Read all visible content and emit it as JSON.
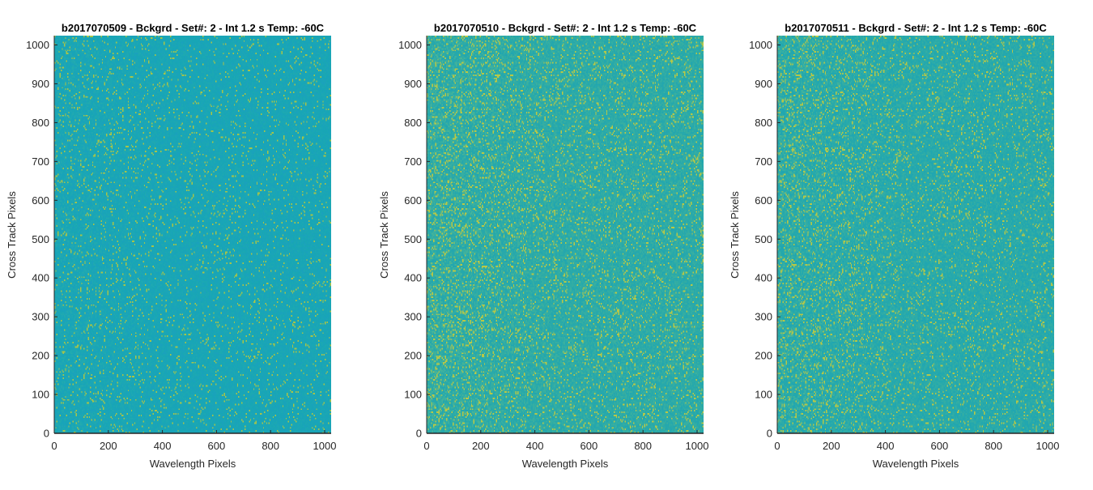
{
  "chart_data": [
    {
      "type": "heatmap",
      "title": "b2017070509 - Bckgrd - Set#: 2 - Int 1.2 s Temp: -60C",
      "xlabel": "Wavelength Pixels",
      "ylabel": "Cross Track Pixels",
      "xlim": [
        0,
        1024
      ],
      "ylim": [
        0,
        1024
      ],
      "x_ticks": [
        0,
        200,
        400,
        600,
        800,
        1000
      ],
      "y_ticks": [
        0,
        100,
        200,
        300,
        400,
        500,
        600,
        700,
        800,
        900,
        1000
      ],
      "colors": {
        "base": "#17a6b5",
        "light": "#4db79a",
        "dark": "#1d9ec2",
        "speckle": "#a8c447"
      },
      "texture": {
        "base_mix": 0.12,
        "left_gradient": 0.15,
        "speckle_rate": 0.05
      }
    },
    {
      "type": "heatmap",
      "title": "b2017070510 - Bckgrd - Set#: 2 - Int 1.2 s Temp: -60C",
      "xlabel": "Wavelength Pixels",
      "ylabel": "Cross Track Pixels",
      "xlim": [
        0,
        1024
      ],
      "ylim": [
        0,
        1024
      ],
      "x_ticks": [
        0,
        200,
        400,
        600,
        800,
        1000
      ],
      "y_ticks": [
        0,
        100,
        200,
        300,
        400,
        500,
        600,
        700,
        800,
        900,
        1000
      ],
      "colors": {
        "base": "#2aaaa8",
        "light": "#5ebc8c",
        "dark": "#1aa2b8",
        "speckle": "#b9c845"
      },
      "texture": {
        "base_mix": 0.35,
        "left_gradient": 0.35,
        "speckle_rate": 0.09
      }
    },
    {
      "type": "heatmap",
      "title": "b2017070511 - Bckgrd - Set#: 2 - Int 1.2 s Temp: -60C",
      "xlabel": "Wavelength Pixels",
      "ylabel": "Cross Track Pixels",
      "xlim": [
        0,
        1024
      ],
      "ylim": [
        0,
        1024
      ],
      "x_ticks": [
        0,
        200,
        400,
        600,
        800,
        1000
      ],
      "y_ticks": [
        0,
        100,
        200,
        300,
        400,
        500,
        600,
        700,
        800,
        900,
        1000
      ],
      "colors": {
        "base": "#26a9ab",
        "light": "#5cbb8e",
        "dark": "#19a3b9",
        "speckle": "#b6c746"
      },
      "texture": {
        "base_mix": 0.3,
        "left_gradient": 0.35,
        "speckle_rate": 0.08
      }
    }
  ]
}
